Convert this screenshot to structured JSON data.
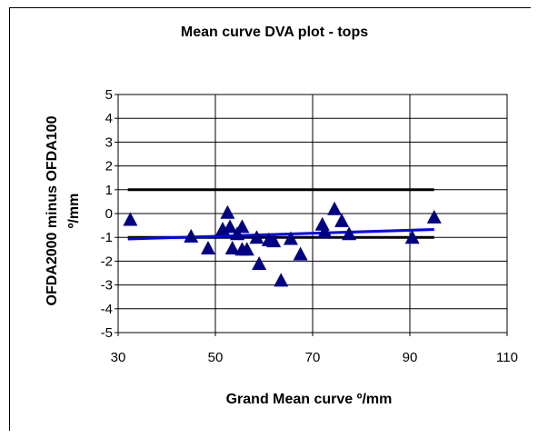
{
  "chart_data": {
    "type": "scatter",
    "title": "Mean curve DVA plot - tops",
    "xlabel": "Grand Mean curve º/mm",
    "ylabel_line1": "OFDA2000 minus OFDA100",
    "ylabel_line2": "º/mm",
    "xlim": [
      30,
      110
    ],
    "ylim": [
      -5,
      5
    ],
    "x_ticks": [
      "30",
      "50",
      "70",
      "90",
      "110"
    ],
    "x_tick_values": [
      30,
      50,
      70,
      90,
      110
    ],
    "y_ticks": [
      "5",
      "4",
      "3",
      "2",
      "1",
      "0",
      "-1",
      "-2",
      "-3",
      "-4",
      "-5"
    ],
    "y_tick_values": [
      5,
      4,
      3,
      2,
      1,
      0,
      -1,
      -2,
      -3,
      -4,
      -5
    ],
    "grid": true,
    "marker": "triangle",
    "colors": {
      "points": "#000080",
      "limits": "#000000",
      "trend": "#0000ff",
      "grid": "#000000"
    },
    "points": [
      {
        "x": 32.5,
        "y": -0.25
      },
      {
        "x": 45.0,
        "y": -0.95
      },
      {
        "x": 48.5,
        "y": -1.45
      },
      {
        "x": 51.5,
        "y": -0.65
      },
      {
        "x": 52.5,
        "y": 0.05
      },
      {
        "x": 53.0,
        "y": -0.55
      },
      {
        "x": 53.5,
        "y": -1.45
      },
      {
        "x": 54.5,
        "y": -0.85
      },
      {
        "x": 55.5,
        "y": -0.55
      },
      {
        "x": 55.5,
        "y": -1.5
      },
      {
        "x": 56.5,
        "y": -1.5
      },
      {
        "x": 58.5,
        "y": -1.0
      },
      {
        "x": 59.0,
        "y": -2.1
      },
      {
        "x": 61.0,
        "y": -1.1
      },
      {
        "x": 62.0,
        "y": -1.15
      },
      {
        "x": 63.5,
        "y": -2.8
      },
      {
        "x": 65.5,
        "y": -1.05
      },
      {
        "x": 67.5,
        "y": -1.7
      },
      {
        "x": 72.0,
        "y": -0.45
      },
      {
        "x": 72.5,
        "y": -0.75
      },
      {
        "x": 74.5,
        "y": 0.2
      },
      {
        "x": 76.0,
        "y": -0.3
      },
      {
        "x": 77.5,
        "y": -0.85
      },
      {
        "x": 90.5,
        "y": -1.0
      },
      {
        "x": 95.0,
        "y": -0.15
      }
    ],
    "limit_lines": [
      {
        "x1": 32,
        "x2": 95,
        "y": 1.0
      },
      {
        "x1": 32,
        "x2": 95,
        "y": -1.0
      }
    ],
    "trend_line": {
      "x1": 32,
      "y1": -1.07,
      "x2": 95,
      "y2": -0.67
    }
  }
}
